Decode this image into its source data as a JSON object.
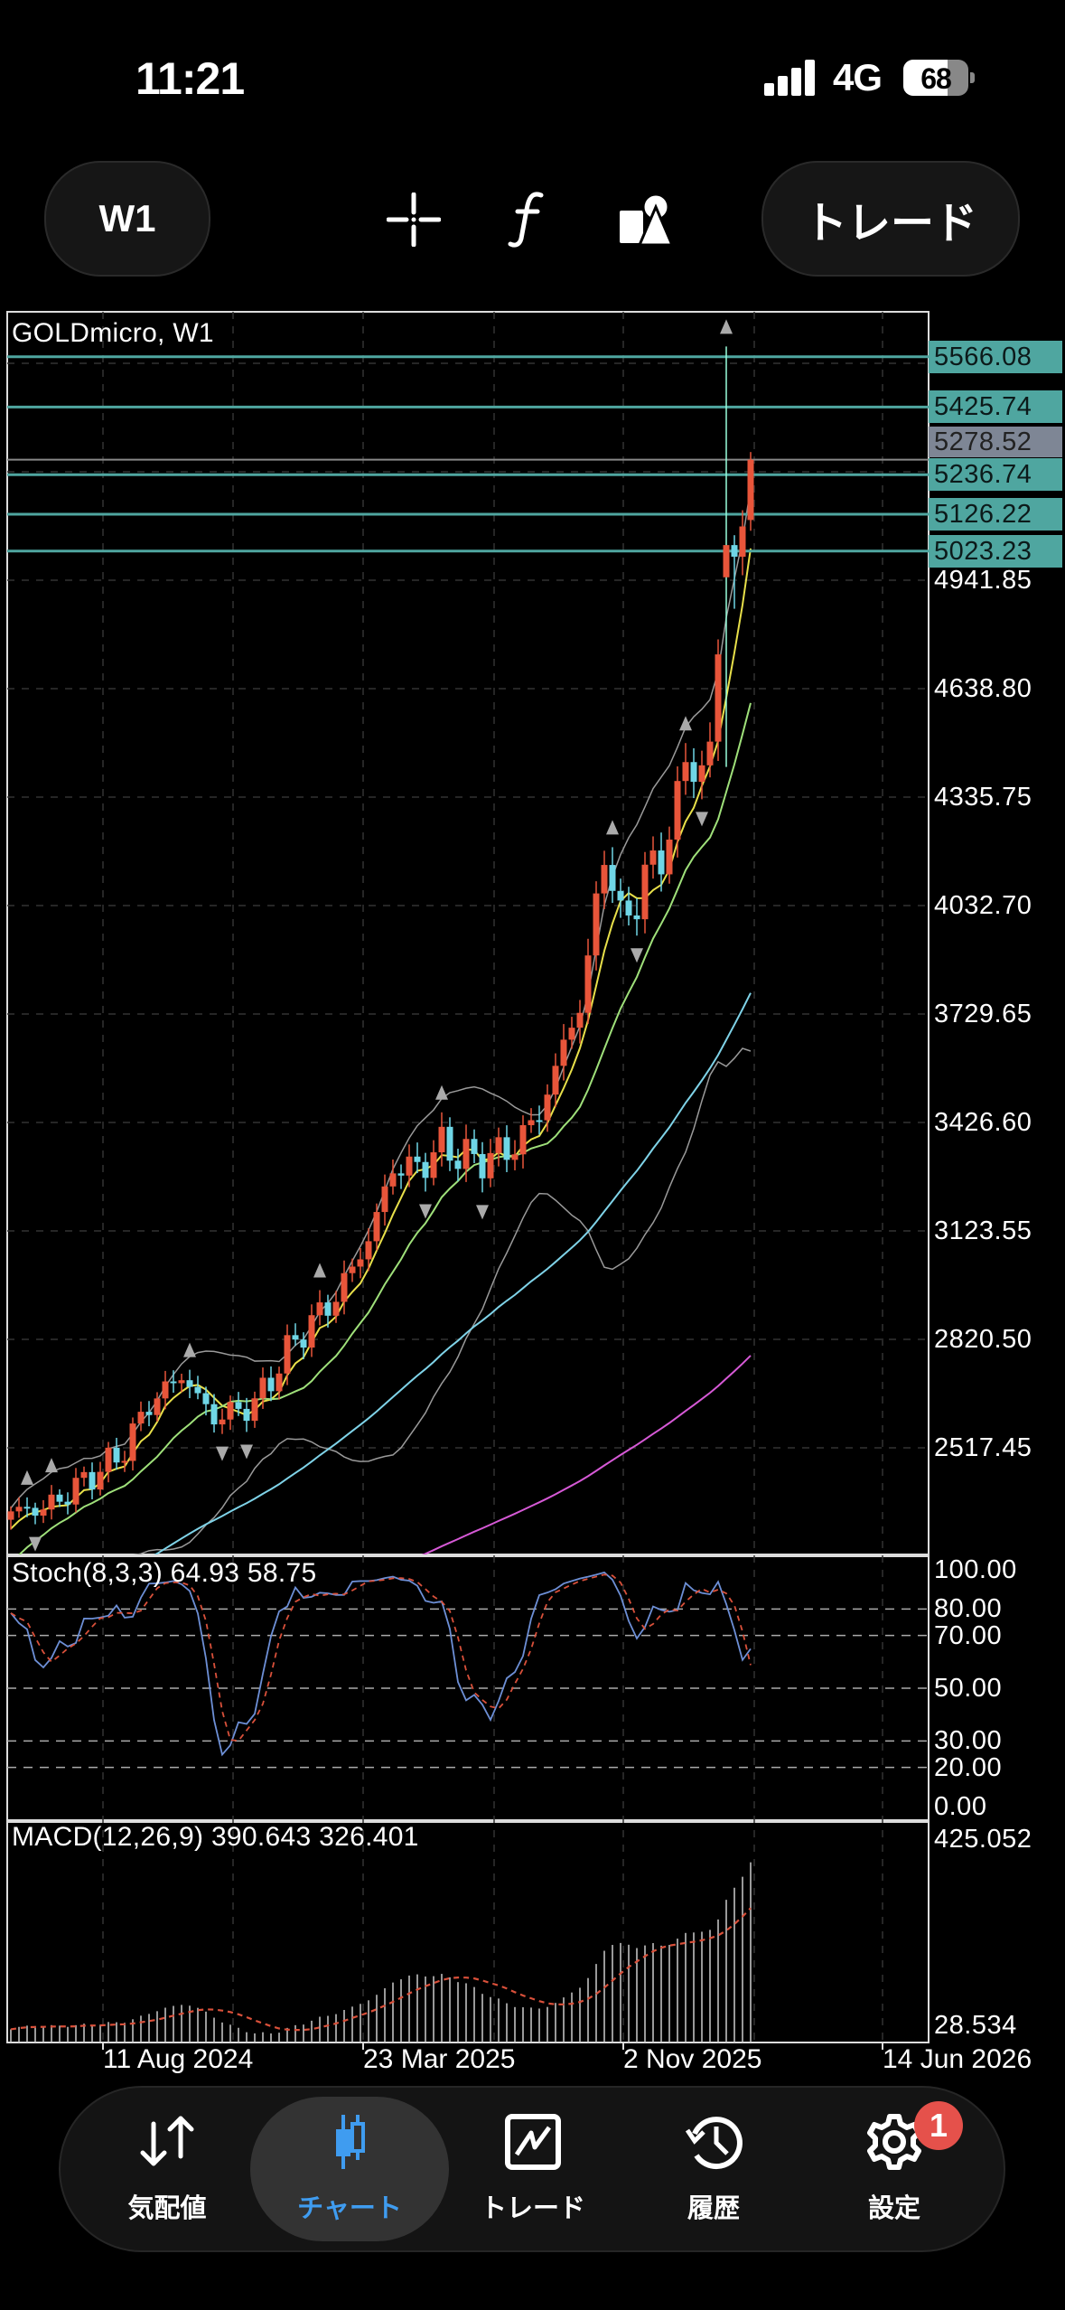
{
  "status": {
    "time": "11:21",
    "network": "4G",
    "battery": "68",
    "battery_level": 0.68
  },
  "toolbar": {
    "timeframe": "W1",
    "trade_label": "トレード",
    "icons": [
      "crosshair-icon",
      "function-icon",
      "shapes-icon"
    ]
  },
  "chart_data": {
    "type": "candlestick",
    "title": "GOLDmicro, W1",
    "symbol": "GOLDmicro",
    "timeframe": "W1",
    "weeks": 92,
    "close_keypoints": [
      [
        0,
        2340
      ],
      [
        4.5,
        2350
      ],
      [
        8.7,
        2420
      ],
      [
        13.6,
        2500
      ],
      [
        17,
        2640
      ],
      [
        21,
        2720
      ],
      [
        25,
        2600
      ],
      [
        30,
        2640
      ],
      [
        35,
        2820
      ],
      [
        40,
        2940
      ],
      [
        44,
        3100
      ],
      [
        47,
        3300
      ],
      [
        50,
        3300
      ],
      [
        53,
        3360
      ],
      [
        57,
        3320
      ],
      [
        61.5,
        3350
      ],
      [
        65,
        3450
      ],
      [
        68,
        3640
      ],
      [
        70.6,
        3800
      ],
      [
        73,
        4200
      ],
      [
        75,
        3980
      ],
      [
        78,
        4100
      ],
      [
        81.5,
        4250
      ],
      [
        83,
        4450
      ],
      [
        85.7,
        4380
      ],
      [
        87.5,
        4900
      ],
      [
        89,
        5000
      ],
      [
        90.5,
        5100
      ],
      [
        91,
        5278.52
      ]
    ],
    "last_candle": {
      "open": 5110,
      "high": 5300,
      "low": 5080,
      "close": 5278.52
    },
    "spike_candle": {
      "index": 88,
      "open": 4950,
      "high": 5595,
      "low": 4420,
      "close": 5040
    },
    "current_price": "5278.52",
    "levels": [
      "5566.08",
      "5425.74",
      "5236.74",
      "5126.22",
      "5023.23"
    ],
    "price_axis": [
      "4941.85",
      "4638.80",
      "4335.75",
      "4032.70",
      "3729.65",
      "3426.60",
      "3123.55",
      "2820.50",
      "2517.45"
    ],
    "date_axis": [
      "11 Aug 2024",
      "23 Mar 2025",
      "2 Nov 2025",
      "14 Jun 2026"
    ],
    "moving_averages": [
      {
        "period": 5,
        "color": "#e8e04a"
      },
      {
        "period": 13,
        "color": "#9fe07a"
      },
      {
        "period": 50,
        "color": "#7fd3e8"
      },
      {
        "period": 150,
        "color": "#d659d6"
      }
    ],
    "bollinger": {
      "period": 20,
      "dev": 2,
      "color": "#9a9a9a"
    },
    "colors": {
      "up": "#e8553a",
      "down": "#6fd6e6",
      "level": "#4fa6a0"
    },
    "stochastic": {
      "label": "Stoch(8,3,3) 64.93 58.75",
      "axis": [
        "100.00",
        "80.00",
        "70.00",
        "50.00",
        "30.00",
        "20.00",
        "0.00"
      ],
      "levels": [
        80,
        70,
        50,
        30,
        20
      ],
      "k": 64.93,
      "d": 58.75
    },
    "macd": {
      "label": "MACD(12,26,9) 390.643 326.401",
      "axis_max": "425.052",
      "axis_min": "28.534",
      "main": 390.643,
      "signal": 326.401
    }
  },
  "nav": {
    "items": [
      {
        "label": "気配値",
        "icon": "quotes-icon"
      },
      {
        "label": "チャート",
        "icon": "chart-icon"
      },
      {
        "label": "トレード",
        "icon": "trade-icon"
      },
      {
        "label": "履歴",
        "icon": "history-icon"
      },
      {
        "label": "設定",
        "icon": "settings-icon"
      }
    ],
    "active": 1,
    "settings_badge": "1",
    "accent": "#3f9cf0"
  }
}
